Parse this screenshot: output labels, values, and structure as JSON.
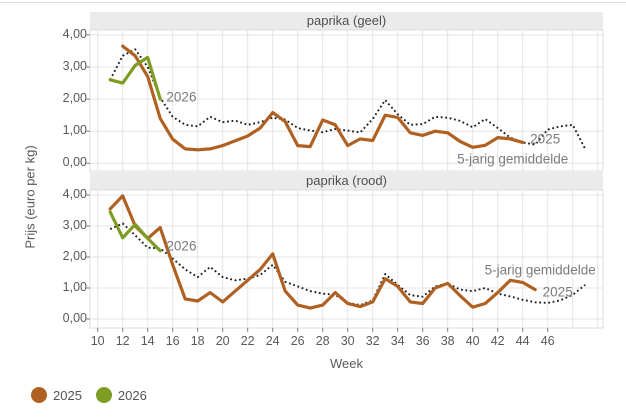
{
  "ylabel": "Prijs (euro per kg)",
  "xlabel": "Week",
  "colors": {
    "accent_2025": "#b06122",
    "accent_2026": "#7d9c21",
    "avg_line": "#1c1c1c",
    "strip_bg": "#ebebeb",
    "grid_line": "#e4e4e4",
    "panel_border": "#dcdcdc",
    "tick_mark": "#7f7f7f",
    "top_border": "#dcdcdc"
  },
  "legend": {
    "items": [
      {
        "label": "2025",
        "color_key": "accent_2025"
      },
      {
        "label": "2026",
        "color_key": "accent_2026"
      }
    ]
  },
  "x_axis": {
    "tick_labels": [
      "10",
      "12",
      "14",
      "16",
      "18",
      "20",
      "22",
      "24",
      "26",
      "28",
      "30",
      "32",
      "34",
      "36",
      "38",
      "40",
      "42",
      "44",
      "46"
    ]
  },
  "y_axis": {
    "tick_values": [
      0,
      1,
      2,
      3,
      4
    ],
    "tick_labels": [
      "0,00",
      "1,00",
      "2,00",
      "3,00",
      "4,00"
    ]
  },
  "chart_data": [
    {
      "type": "line",
      "title": "paprika (geel)",
      "xlabel": "Week",
      "ylabel": "Prijs (euro per kg)",
      "xlim": [
        9.4,
        50.4
      ],
      "ylim": [
        0,
        4
      ],
      "grid": true,
      "series": [
        {
          "name": "5-jarig gemiddelde",
          "style": "dotted",
          "start_week": 11,
          "values": [
            2.6,
            3.35,
            3.55,
            3.0,
            2.05,
            1.45,
            1.2,
            1.15,
            1.45,
            1.28,
            1.33,
            1.2,
            1.28,
            1.42,
            1.36,
            1.1,
            1.02,
            0.97,
            1.07,
            1.02,
            0.96,
            1.38,
            1.97,
            1.53,
            1.2,
            1.22,
            1.45,
            1.42,
            1.32,
            1.12,
            1.38,
            1.1,
            0.8,
            0.65,
            0.58,
            1.05,
            1.15,
            1.2,
            0.45
          ]
        },
        {
          "name": "2025",
          "style": "solid",
          "start_week": 12,
          "values": [
            3.65,
            3.35,
            2.7,
            1.4,
            0.75,
            0.45,
            0.42,
            0.45,
            0.55,
            0.7,
            0.85,
            1.1,
            1.58,
            1.3,
            0.55,
            0.52,
            1.35,
            1.2,
            0.55,
            0.76,
            0.71,
            1.5,
            1.43,
            0.95,
            0.87,
            1.0,
            0.95,
            0.68,
            0.5,
            0.56,
            0.8,
            0.76,
            0.65
          ]
        },
        {
          "name": "2026",
          "style": "solid",
          "start_week": 11,
          "values": [
            2.6,
            2.5,
            3.05,
            3.3,
            2.0
          ]
        }
      ],
      "annotations": [
        {
          "text": "2026",
          "week": 16.7,
          "value": 2.07
        },
        {
          "text": "2025",
          "week": 45.8,
          "value": 0.76
        },
        {
          "text": "5-jarig gemiddelde",
          "week": 43.2,
          "value": 0.13
        }
      ]
    },
    {
      "type": "line",
      "title": "paprika (rood)",
      "xlabel": "Week",
      "ylabel": "Prijs (euro per kg)",
      "xlim": [
        9.4,
        50.4
      ],
      "ylim": [
        0,
        4
      ],
      "grid": true,
      "series": [
        {
          "name": "5-jarig gemiddelde",
          "style": "dotted",
          "start_week": 11,
          "values": [
            2.9,
            3.08,
            2.7,
            2.3,
            2.28,
            1.95,
            1.6,
            1.35,
            1.68,
            1.35,
            1.25,
            1.3,
            1.42,
            1.75,
            1.2,
            1.05,
            0.9,
            0.82,
            0.78,
            0.52,
            0.45,
            0.6,
            1.45,
            1.1,
            0.77,
            0.72,
            1.05,
            1.15,
            0.95,
            0.9,
            1.0,
            0.82,
            0.73,
            0.62,
            0.54,
            0.52,
            0.6,
            0.78,
            1.1
          ]
        },
        {
          "name": "2025",
          "style": "solid",
          "start_week": 11,
          "values": [
            3.55,
            3.97,
            3.0,
            2.6,
            2.95,
            1.75,
            0.65,
            0.58,
            0.85,
            0.55,
            0.9,
            1.25,
            1.6,
            2.1,
            0.9,
            0.45,
            0.35,
            0.45,
            0.85,
            0.5,
            0.4,
            0.55,
            1.3,
            1.05,
            0.55,
            0.5,
            1.0,
            1.15,
            0.75,
            0.38,
            0.5,
            0.85,
            1.25,
            1.18,
            0.95
          ]
        },
        {
          "name": "2026",
          "style": "solid",
          "start_week": 11,
          "values": [
            3.45,
            2.62,
            3.05,
            2.6,
            2.2
          ]
        }
      ],
      "annotations": [
        {
          "text": "2026",
          "week": 16.7,
          "value": 2.35
        },
        {
          "text": "5-jarig gemiddelde",
          "week": 45.4,
          "value": 1.58
        },
        {
          "text": "2025",
          "week": 46.8,
          "value": 0.87
        }
      ]
    }
  ]
}
